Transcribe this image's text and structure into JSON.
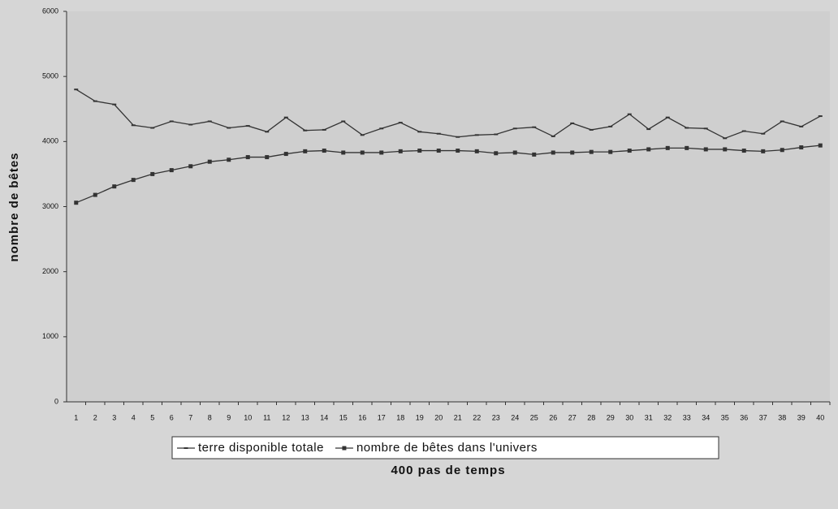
{
  "chart_data": {
    "type": "line",
    "x_label": "400 pas de temps",
    "y_label": "nombre de bêtes",
    "categories": [
      1,
      2,
      3,
      4,
      5,
      6,
      7,
      8,
      9,
      10,
      11,
      12,
      13,
      14,
      15,
      16,
      17,
      18,
      19,
      20,
      21,
      22,
      23,
      24,
      25,
      26,
      27,
      28,
      29,
      30,
      31,
      32,
      33,
      34,
      35,
      36,
      37,
      38,
      39,
      40
    ],
    "series": [
      {
        "name": "terre disponible totale",
        "color": "#333333",
        "marker": "dash",
        "values": [
          4800,
          4620,
          4570,
          4250,
          4210,
          4310,
          4260,
          4310,
          4210,
          4240,
          4150,
          4370,
          4170,
          4180,
          4310,
          4100,
          4200,
          4290,
          4150,
          4120,
          4070,
          4100,
          4110,
          4200,
          4220,
          4080,
          4280,
          4180,
          4230,
          4420,
          4190,
          4370,
          4210,
          4200,
          4050,
          4160,
          4120,
          4310,
          4230,
          4390
        ]
      },
      {
        "name": "nombre de bêtes dans l'univers",
        "color": "#333333",
        "marker": "square",
        "values": [
          3060,
          3180,
          3310,
          3410,
          3500,
          3560,
          3620,
          3690,
          3720,
          3760,
          3760,
          3810,
          3850,
          3860,
          3830,
          3830,
          3830,
          3850,
          3860,
          3860,
          3860,
          3850,
          3820,
          3830,
          3800,
          3830,
          3830,
          3840,
          3840,
          3860,
          3880,
          3900,
          3900,
          3880,
          3880,
          3860,
          3850,
          3870,
          3910,
          3940
        ]
      }
    ],
    "ylim": [
      0,
      6000
    ],
    "yticks": [
      0,
      1000,
      2000,
      3000,
      4000,
      5000,
      6000
    ],
    "grid": false,
    "legend": "bottom"
  }
}
